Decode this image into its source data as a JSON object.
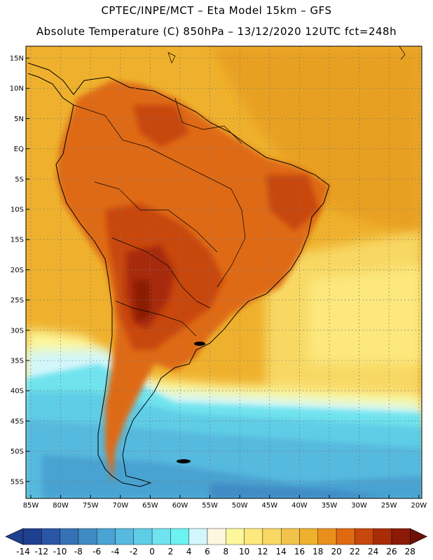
{
  "header": {
    "title_line1": "CPTEC/INPE/MCT –  Eta Model 15km – GFS",
    "title_line2": "Absolute Temperature (C) 850hPa – 13/12/2020 12UTC fct=248h"
  },
  "axes": {
    "lat_labels": [
      "15N",
      "10N",
      "5N",
      "EQ",
      "5S",
      "10S",
      "15S",
      "20S",
      "25S",
      "30S",
      "35S",
      "40S",
      "45S",
      "50S",
      "55S"
    ],
    "lon_labels": [
      "85W",
      "80W",
      "75W",
      "70W",
      "65W",
      "60W",
      "55W",
      "50W",
      "45W",
      "40W",
      "35W",
      "30W",
      "25W",
      "20W"
    ]
  },
  "colorbar": {
    "labels": [
      "-14",
      "-12",
      "-10",
      "-8",
      "-6",
      "-4",
      "-2",
      "0",
      "2",
      "4",
      "6",
      "8",
      "10",
      "12",
      "14",
      "16",
      "18",
      "20",
      "22",
      "24",
      "26",
      "28"
    ],
    "colors": [
      "#1f3f8f",
      "#2a56a6",
      "#3572b5",
      "#3f8bc4",
      "#4aa3d2",
      "#57b9de",
      "#5fcde6",
      "#6fe3ee",
      "#6cf2f2",
      "#d2f6fb",
      "#fdf7e0",
      "#fdf79c",
      "#fce87d",
      "#f8d864",
      "#f2c34a",
      "#efb12d",
      "#e8901b",
      "#df6a12",
      "#c8470c",
      "#a82c08",
      "#8c1a06",
      "#6e1005"
    ]
  },
  "colors": {
    "ocean_warm": "#efb12d",
    "land_hot": "#c8470c",
    "land_hotter": "#a82c08",
    "cold_south": "#57b9de"
  }
}
